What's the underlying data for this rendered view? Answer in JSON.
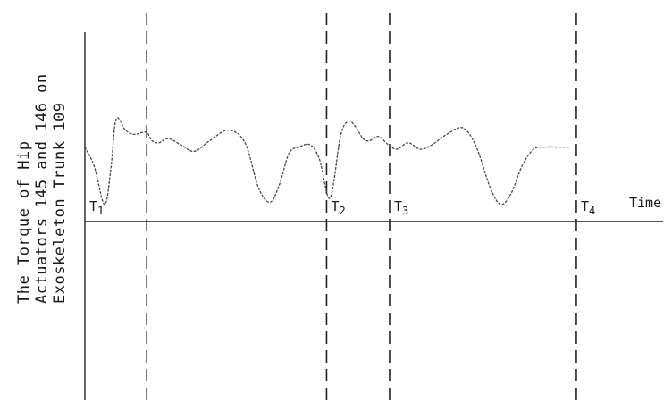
{
  "chart_data": {
    "type": "line",
    "title": "",
    "ylabel_lines": [
      "The Torque of Hip",
      "Actuators 145 and 146 on",
      "Exoskeleton Trunk 109"
    ],
    "xlabel": "Time",
    "xlim": [
      0,
      100
    ],
    "ylim": [
      -8.5,
      10
    ],
    "grid": false,
    "legend": "none",
    "time_markers": [
      {
        "name": "T1",
        "label": "T",
        "sub": "1",
        "x": 0,
        "style": "solid"
      },
      {
        "name": "T1-end",
        "label": "",
        "sub": "",
        "x": 10.7,
        "style": "dashed"
      },
      {
        "name": "T2",
        "label": "T",
        "sub": "2",
        "x": 41.8,
        "style": "dashed"
      },
      {
        "name": "T3",
        "label": "T",
        "sub": "3",
        "x": 52.7,
        "style": "dashed"
      },
      {
        "name": "T4",
        "label": "T",
        "sub": "4",
        "x": 85.0,
        "style": "dashed"
      }
    ],
    "series": [
      {
        "x": [
          0,
          1.6,
          3.4,
          4.5,
          5.4,
          7.0,
          8.5,
          10.6,
          11.6,
          12.8,
          14.4,
          16.6,
          18.9,
          21.6,
          24.8,
          27.7,
          30.0,
          32.0,
          33.6,
          35.3,
          37.0,
          39.0,
          40.6,
          42.4,
          44.2,
          45.5,
          46.7,
          48.1,
          49.2,
          50.8,
          52.5,
          54.0,
          55.9,
          58.0,
          60.0,
          62.6,
          65.4,
          67.7,
          70.1,
          71.9,
          73.7,
          75.6,
          77.6,
          79.6,
          81.6,
          83.8
        ],
        "y": [
          3.5,
          2.6,
          0.8,
          2.5,
          4.8,
          4.3,
          4.1,
          4.2,
          3.8,
          3.7,
          3.9,
          3.6,
          3.3,
          3.8,
          4.3,
          3.7,
          1.6,
          0.9,
          1.7,
          3.2,
          3.5,
          3.6,
          2.9,
          1.1,
          4.0,
          4.7,
          4.5,
          3.9,
          3.8,
          4.0,
          3.6,
          3.4,
          3.7,
          3.4,
          3.6,
          4.1,
          4.4,
          3.5,
          1.6,
          0.8,
          1.3,
          2.6,
          3.4,
          3.5,
          3.5,
          3.5
        ]
      }
    ]
  }
}
